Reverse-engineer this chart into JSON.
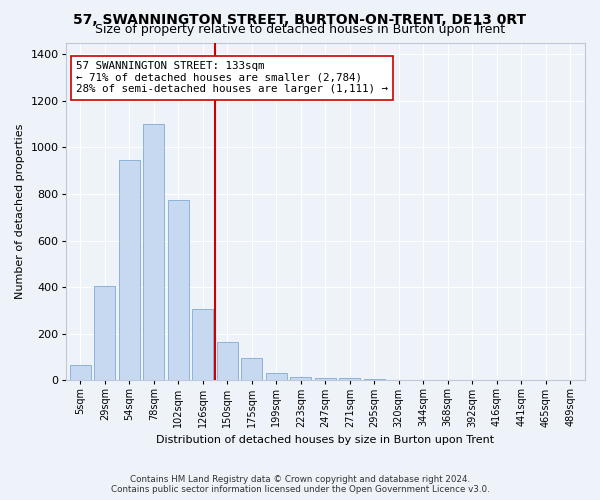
{
  "title": "57, SWANNINGTON STREET, BURTON-ON-TRENT, DE13 0RT",
  "subtitle": "Size of property relative to detached houses in Burton upon Trent",
  "xlabel": "Distribution of detached houses by size in Burton upon Trent",
  "ylabel": "Number of detached properties",
  "categories": [
    "5sqm",
    "29sqm",
    "54sqm",
    "78sqm",
    "102sqm",
    "126sqm",
    "150sqm",
    "175sqm",
    "199sqm",
    "223sqm",
    "247sqm",
    "271sqm",
    "295sqm",
    "320sqm",
    "344sqm",
    "368sqm",
    "392sqm",
    "416sqm",
    "441sqm",
    "465sqm",
    "489sqm"
  ],
  "values": [
    65,
    405,
    945,
    1100,
    775,
    305,
    165,
    95,
    30,
    15,
    10,
    8,
    5,
    3,
    2,
    2,
    1,
    1,
    1,
    1,
    1
  ],
  "bar_color": "#c6d9f0",
  "bar_edgecolor": "#8db3d9",
  "vline_color": "#cc0000",
  "vline_pos": 5.5,
  "annotation_text": "57 SWANNINGTON STREET: 133sqm\n← 71% of detached houses are smaller (2,784)\n28% of semi-detached houses are larger (1,111) →",
  "annotation_box_color": "#ffffff",
  "annotation_box_edgecolor": "#cc0000",
  "ylim": [
    0,
    1450
  ],
  "yticks": [
    0,
    200,
    400,
    600,
    800,
    1000,
    1200,
    1400
  ],
  "footer1": "Contains HM Land Registry data © Crown copyright and database right 2024.",
  "footer2": "Contains public sector information licensed under the Open Government Licence v3.0.",
  "title_fontsize": 10,
  "subtitle_fontsize": 9,
  "bg_color": "#eef2f9",
  "grid_color": "#ffffff",
  "spine_color": "#c0c8d8"
}
